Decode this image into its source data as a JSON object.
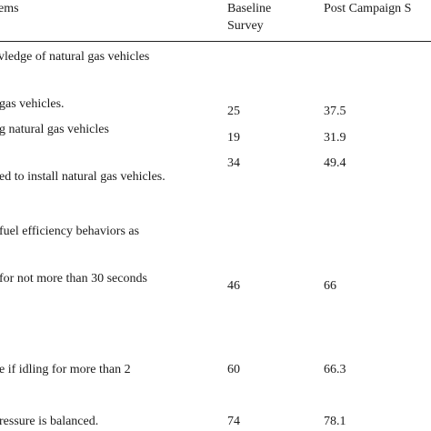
{
  "table": {
    "header": {
      "items": "ems",
      "baseline_line1": "Baseline",
      "baseline_line2": "Survey",
      "post": "Post Campaign S"
    },
    "section_knowledge": "vledge of natural gas vehicles",
    "rows": [
      {
        "label": "gas vehicles.",
        "baseline": "25",
        "post": "37.5"
      },
      {
        "label": "g natural gas vehicles",
        "baseline": "19",
        "post": "31.9"
      },
      {
        "label": "ed to install natural gas vehicles.",
        "baseline": "34",
        "post": "49.4"
      }
    ],
    "section_behaviors": "fuel efficiency behaviors as",
    "rows_behaviors": [
      {
        "label": " for not more than 30 seconds",
        "baseline": "46",
        "post": "66"
      },
      {
        "label": "e if idling for more than 2",
        "baseline": "60",
        "post": "66.3"
      },
      {
        "label": "ressure is balanced.",
        "baseline": "74",
        "post": "78.1"
      }
    ]
  }
}
